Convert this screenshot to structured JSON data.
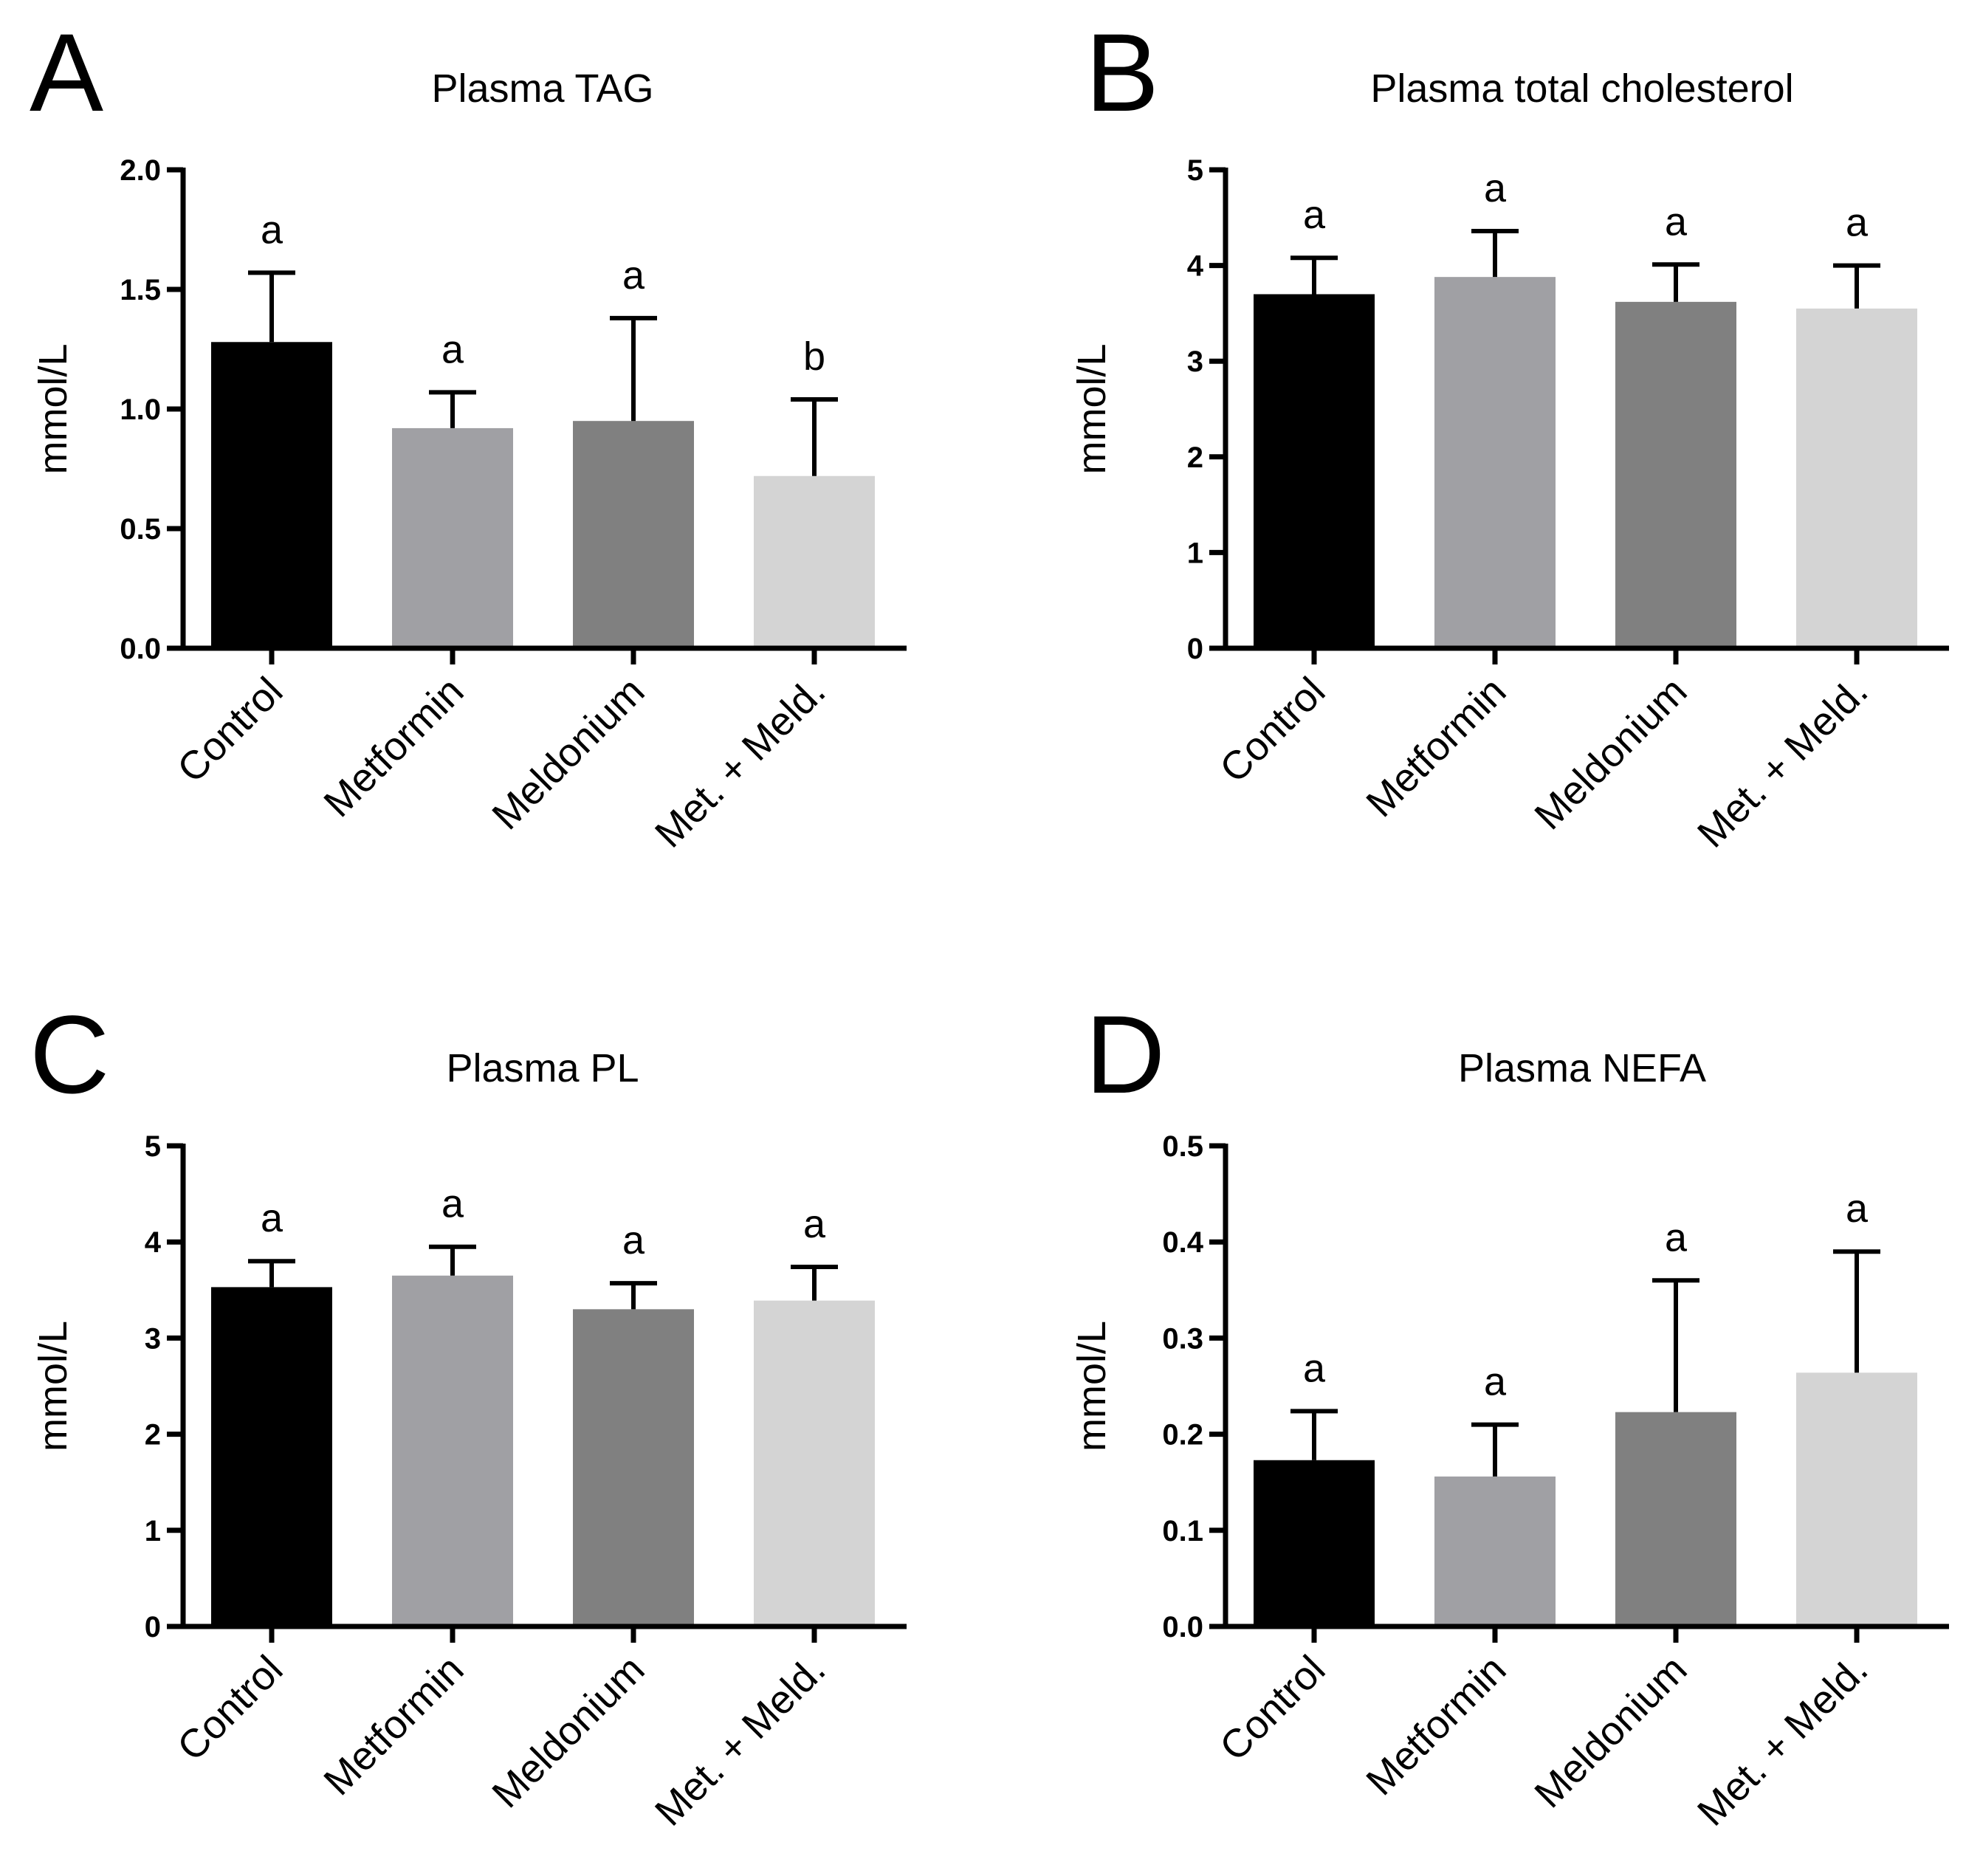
{
  "chart_data": [
    {
      "type": "bar",
      "panel": "A",
      "title": "Plasma TAG",
      "xlabel": "",
      "ylabel": "mmol/L",
      "ylim": [
        0,
        2.0
      ],
      "yticks": [
        0.0,
        0.5,
        1.0,
        1.5,
        2.0
      ],
      "ytick_labels": [
        "0.0",
        "0.5",
        "1.0",
        "1.5",
        "2.0"
      ],
      "categories": [
        "Control",
        "Metformin",
        "Meldonium",
        "Met. + Meld."
      ],
      "values": [
        1.28,
        0.92,
        0.95,
        0.72
      ],
      "errors": [
        0.29,
        0.15,
        0.43,
        0.32
      ],
      "letters": [
        "a",
        "a",
        "a",
        "b"
      ],
      "colors": [
        "#000000",
        "#a0a0a4",
        "#808080",
        "#d4d4d4"
      ]
    },
    {
      "type": "bar",
      "panel": "B",
      "title": "Plasma total cholesterol",
      "xlabel": "",
      "ylabel": "mmol/L",
      "ylim": [
        0,
        5
      ],
      "yticks": [
        0,
        1,
        2,
        3,
        4,
        5
      ],
      "ytick_labels": [
        "0",
        "1",
        "2",
        "3",
        "4",
        "5"
      ],
      "categories": [
        "Control",
        "Metformin",
        "Meldonium",
        "Met. + Meld."
      ],
      "values": [
        3.7,
        3.88,
        3.62,
        3.55
      ],
      "errors": [
        0.38,
        0.48,
        0.39,
        0.45
      ],
      "letters": [
        "a",
        "a",
        "a",
        "a"
      ],
      "colors": [
        "#000000",
        "#a0a0a4",
        "#808080",
        "#d4d4d4"
      ]
    },
    {
      "type": "bar",
      "panel": "C",
      "title": "Plasma PL",
      "xlabel": "",
      "ylabel": "mmol/L",
      "ylim": [
        0,
        5
      ],
      "yticks": [
        0,
        1,
        2,
        3,
        4,
        5
      ],
      "ytick_labels": [
        "0",
        "1",
        "2",
        "3",
        "4",
        "5"
      ],
      "categories": [
        "Control",
        "Metformin",
        "Meldonium",
        "Met. + Meld."
      ],
      "values": [
        3.53,
        3.65,
        3.3,
        3.39
      ],
      "errors": [
        0.27,
        0.3,
        0.27,
        0.35
      ],
      "letters": [
        "a",
        "a",
        "a",
        "a"
      ],
      "colors": [
        "#000000",
        "#a0a0a4",
        "#808080",
        "#d4d4d4"
      ]
    },
    {
      "type": "bar",
      "panel": "D",
      "title": "Plasma NEFA",
      "xlabel": "",
      "ylabel": "mmol/L",
      "ylim": [
        0,
        0.5
      ],
      "yticks": [
        0.0,
        0.1,
        0.2,
        0.3,
        0.4,
        0.5
      ],
      "ytick_labels": [
        "0.0",
        "0.1",
        "0.2",
        "0.3",
        "0.4",
        "0.5"
      ],
      "categories": [
        "Control",
        "Metformin",
        "Meldonium",
        "Met. + Meld."
      ],
      "values": [
        0.173,
        0.156,
        0.223,
        0.264
      ],
      "errors": [
        0.051,
        0.054,
        0.137,
        0.126
      ],
      "letters": [
        "a",
        "a",
        "a",
        "a"
      ],
      "colors": [
        "#000000",
        "#a0a0a4",
        "#808080",
        "#d4d4d4"
      ]
    }
  ]
}
